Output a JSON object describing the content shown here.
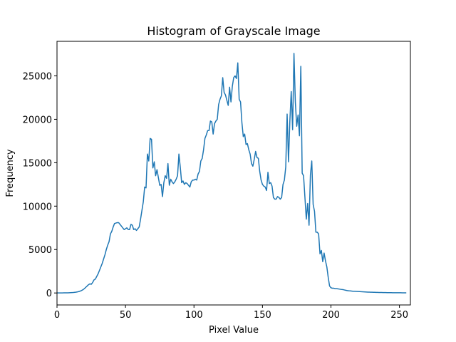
{
  "chart_data": {
    "type": "line",
    "title": "Histogram of Grayscale Image",
    "xlabel": "Pixel Value",
    "ylabel": "Frequency",
    "color": "#1f77b4",
    "xlim": [
      0,
      258
    ],
    "xticks": [
      0,
      50,
      100,
      150,
      200,
      250
    ],
    "ylim": [
      -1380,
      28980
    ],
    "yticks": [
      0,
      5000,
      10000,
      15000,
      20000,
      25000
    ],
    "x": [
      0,
      1,
      2,
      3,
      4,
      5,
      6,
      7,
      8,
      9,
      10,
      11,
      12,
      13,
      14,
      15,
      16,
      17,
      18,
      19,
      20,
      21,
      22,
      23,
      24,
      25,
      26,
      27,
      28,
      29,
      30,
      31,
      32,
      33,
      34,
      35,
      36,
      37,
      38,
      39,
      40,
      41,
      42,
      43,
      44,
      45,
      46,
      47,
      48,
      49,
      50,
      51,
      52,
      53,
      54,
      55,
      56,
      57,
      58,
      59,
      60,
      61,
      62,
      63,
      64,
      65,
      66,
      67,
      68,
      69,
      70,
      71,
      72,
      73,
      74,
      75,
      76,
      77,
      78,
      79,
      80,
      81,
      82,
      83,
      84,
      85,
      86,
      87,
      88,
      89,
      90,
      91,
      92,
      93,
      94,
      95,
      96,
      97,
      98,
      99,
      100,
      101,
      102,
      103,
      104,
      105,
      106,
      107,
      108,
      109,
      110,
      111,
      112,
      113,
      114,
      115,
      116,
      117,
      118,
      119,
      120,
      121,
      122,
      123,
      124,
      125,
      126,
      127,
      128,
      129,
      130,
      131,
      132,
      133,
      134,
      135,
      136,
      137,
      138,
      139,
      140,
      141,
      142,
      143,
      144,
      145,
      146,
      147,
      148,
      149,
      150,
      151,
      152,
      153,
      154,
      155,
      156,
      157,
      158,
      159,
      160,
      161,
      162,
      163,
      164,
      165,
      166,
      167,
      168,
      169,
      170,
      171,
      172,
      173,
      174,
      175,
      176,
      177,
      178,
      179,
      180,
      181,
      182,
      183,
      184,
      185,
      186,
      187,
      188,
      189,
      190,
      191,
      192,
      193,
      194,
      195,
      196,
      197,
      198,
      199,
      200,
      201,
      202,
      203,
      204,
      205,
      206,
      207,
      208,
      209,
      210,
      211,
      212,
      213,
      214,
      215,
      216,
      217,
      218,
      219,
      220,
      221,
      222,
      223,
      224,
      225,
      226,
      227,
      228,
      229,
      230,
      231,
      232,
      233,
      234,
      235,
      236,
      237,
      238,
      239,
      240,
      241,
      242,
      243,
      244,
      245,
      246,
      247,
      248,
      249,
      250,
      251,
      252,
      253,
      254,
      255
    ],
    "values": [
      0,
      0,
      0,
      0,
      0,
      10,
      10,
      20,
      20,
      30,
      40,
      50,
      60,
      80,
      100,
      130,
      170,
      220,
      290,
      380,
      500,
      650,
      800,
      950,
      1050,
      1000,
      1200,
      1500,
      1600,
      1900,
      2200,
      2600,
      3000,
      3400,
      3900,
      4400,
      5000,
      5500,
      5900,
      6800,
      7100,
      7600,
      8000,
      8050,
      8100,
      8100,
      7900,
      7700,
      7500,
      7300,
      7400,
      7500,
      7300,
      7300,
      7900,
      7800,
      7300,
      7400,
      7200,
      7400,
      7600,
      8500,
      9500,
      10500,
      12200,
      12100,
      16000,
      15200,
      17800,
      17700,
      14400,
      15100,
      13500,
      14200,
      13300,
      12400,
      12500,
      11100,
      12700,
      13500,
      13200,
      14900,
      12400,
      13100,
      12800,
      12600,
      12800,
      13100,
      13500,
      16000,
      14500,
      12700,
      12900,
      12500,
      12700,
      12600,
      12400,
      12200,
      12800,
      13000,
      13000,
      13100,
      13000,
      13700,
      14000,
      15200,
      15500,
      16500,
      17800,
      18200,
      18700,
      18700,
      19800,
      19700,
      18300,
      19500,
      19800,
      20000,
      21700,
      22300,
      22700,
      24800,
      23100,
      22800,
      22200,
      21600,
      23700,
      22000,
      23800,
      24800,
      25000,
      24700,
      26500,
      22300,
      22000,
      19600,
      18000,
      18300,
      17100,
      17200,
      16500,
      16000,
      14900,
      14600,
      15400,
      16300,
      15600,
      15500,
      14000,
      13000,
      12500,
      12300,
      12200,
      11800,
      13900,
      12600,
      12700,
      12300,
      11000,
      10800,
      10800,
      11100,
      11000,
      10800,
      11000,
      12500,
      13000,
      14500,
      20600,
      15100,
      19800,
      23200,
      18800,
      27600,
      22000,
      19200,
      20500,
      18100,
      26100,
      13800,
      13500,
      11000,
      8500,
      10300,
      7800,
      13600,
      15200,
      10200,
      9400,
      7000,
      7000,
      6800,
      4500,
      4900,
      3600,
      4600,
      3700,
      3000,
      1800,
      800,
      600,
      550,
      550,
      500,
      500,
      480,
      450,
      420,
      400,
      380,
      340,
      300,
      270,
      250,
      240,
      220,
      200,
      200,
      190,
      180,
      170,
      160,
      150,
      140,
      130,
      120,
      110,
      100,
      100,
      90,
      90,
      80,
      80,
      70,
      70,
      60,
      60,
      60,
      50,
      50,
      50,
      40,
      40,
      40,
      40,
      30,
      30,
      30,
      30,
      30,
      30,
      30,
      20,
      20,
      20,
      20
    ]
  }
}
